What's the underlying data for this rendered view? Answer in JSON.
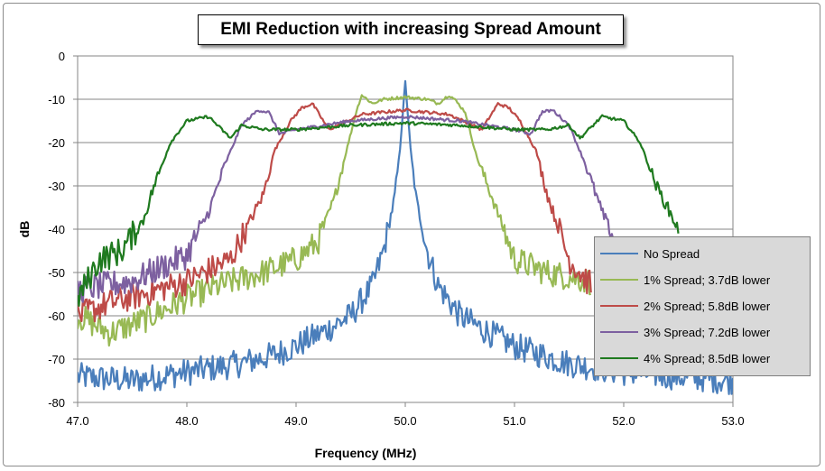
{
  "chart_data": {
    "type": "line",
    "title": "EMI Reduction with increasing Spread Amount",
    "xlabel": "Frequency (MHz)",
    "ylabel": "dB",
    "xlim": [
      47.0,
      53.0
    ],
    "ylim": [
      -80,
      0
    ],
    "x_ticks": [
      "47.0",
      "48.0",
      "49.0",
      "50.0",
      "51.0",
      "52.0",
      "53.0"
    ],
    "y_ticks": [
      "0",
      "-10",
      "-20",
      "-30",
      "-40",
      "-50",
      "-60",
      "-70",
      "-80"
    ],
    "grid": "horizontal",
    "legend_position": "bottom-right",
    "series": [
      {
        "name": "No Spread",
        "color": "#4a7ebb",
        "x": [
          47.0,
          47.5,
          48.0,
          48.5,
          48.8,
          49.0,
          49.3,
          49.5,
          49.7,
          49.8,
          49.9,
          49.95,
          50.0,
          50.05,
          50.1,
          50.2,
          50.3,
          50.5,
          50.7,
          51.0,
          51.5,
          52.0,
          52.5,
          53.0
        ],
        "y": [
          -74,
          -75,
          -73,
          -71,
          -69,
          -67,
          -63,
          -60,
          -53,
          -45,
          -33,
          -22,
          -6,
          -22,
          -33,
          -45,
          -53,
          -60,
          -63,
          -67,
          -71,
          -73,
          -74,
          -75
        ]
      },
      {
        "name": "1% Spread; 3.7dB lower",
        "color": "#98b954",
        "x": [
          47.0,
          47.3,
          47.6,
          48.0,
          48.3,
          48.7,
          49.0,
          49.2,
          49.35,
          49.45,
          49.55,
          49.6,
          49.7,
          49.8,
          50.0,
          50.2,
          50.3,
          50.4,
          50.45,
          50.55,
          50.65,
          50.8,
          51.0,
          51.3,
          51.7
        ],
        "y": [
          -60,
          -64,
          -61,
          -56,
          -53,
          -50,
          -47,
          -43,
          -33,
          -23,
          -13,
          -9,
          -11,
          -10,
          -9.5,
          -10,
          -11,
          -9,
          -10,
          -13,
          -23,
          -33,
          -47,
          -50,
          -52
        ]
      },
      {
        "name": "2% Spread; 5.8dB lower",
        "color": "#be4b48",
        "x": [
          47.0,
          47.3,
          47.6,
          48.0,
          48.4,
          48.7,
          48.8,
          48.95,
          49.05,
          49.15,
          49.3,
          49.6,
          50.0,
          50.4,
          50.7,
          50.85,
          50.95,
          51.05,
          51.2,
          51.3,
          51.5,
          51.7
        ],
        "y": [
          -60,
          -57,
          -55,
          -52,
          -47,
          -32,
          -22,
          -15,
          -12,
          -11,
          -17,
          -13.5,
          -12.5,
          -13.5,
          -17,
          -11,
          -12,
          -15,
          -22,
          -32,
          -47,
          -53
        ]
      },
      {
        "name": "3% Spread; 7.2dB lower",
        "color": "#7d60a0",
        "x": [
          47.0,
          47.5,
          48.0,
          48.2,
          48.35,
          48.5,
          48.65,
          48.75,
          48.85,
          49.0,
          49.5,
          50.0,
          50.5,
          51.0,
          51.15,
          51.25,
          51.35,
          51.5,
          51.65,
          51.8,
          52.0
        ],
        "y": [
          -54,
          -52,
          -46,
          -36,
          -25,
          -16,
          -12.5,
          -13,
          -18,
          -17,
          -15,
          -14,
          -15,
          -17,
          -18,
          -13,
          -12.5,
          -16,
          -25,
          -36,
          -47
        ]
      },
      {
        "name": "4% Spread; 8.5dB lower",
        "color": "#1f7a1f",
        "x": [
          47.0,
          47.2,
          47.4,
          47.6,
          47.7,
          47.85,
          48.0,
          48.2,
          48.4,
          48.5,
          48.7,
          49.0,
          49.5,
          50.0,
          50.5,
          51.0,
          51.3,
          51.5,
          51.6,
          51.8,
          52.0,
          52.15,
          52.3,
          52.5
        ],
        "y": [
          -56,
          -47,
          -45,
          -38,
          -30,
          -20,
          -15,
          -14,
          -19,
          -16,
          -17,
          -17,
          -16,
          -15.5,
          -16,
          -17,
          -17,
          -16,
          -19,
          -14,
          -15,
          -20,
          -30,
          -40
        ]
      }
    ]
  }
}
